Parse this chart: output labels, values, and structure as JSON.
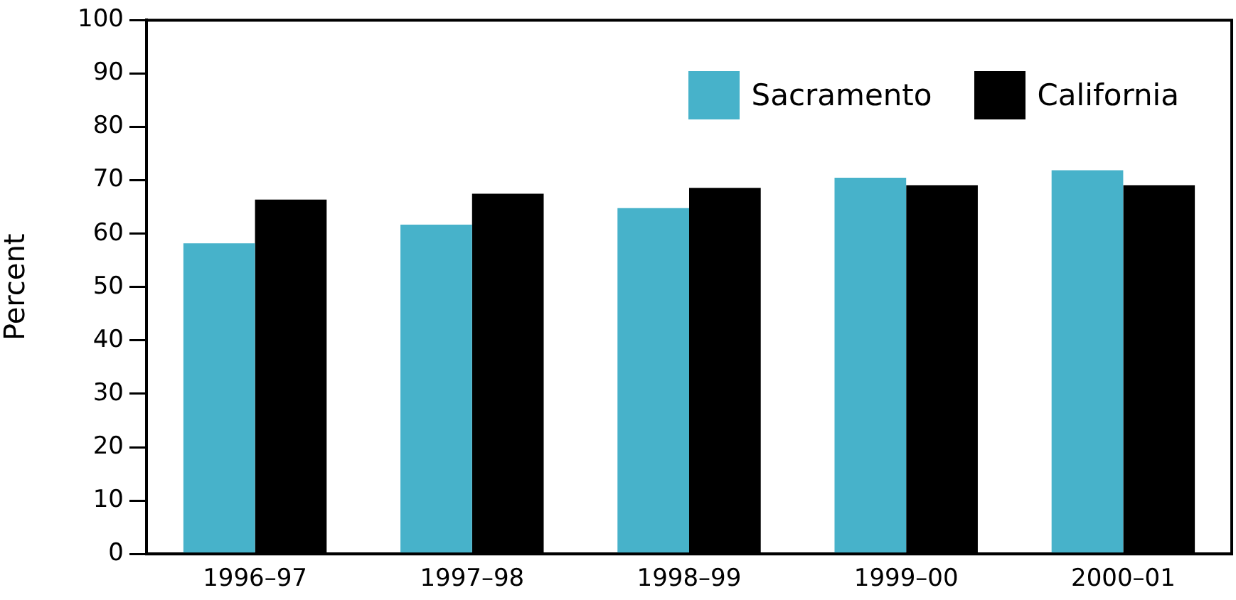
{
  "chart_data": {
    "type": "bar",
    "ylabel": "Percent",
    "categories": [
      "1996–97",
      "1997–98",
      "1998–99",
      "1999–00",
      "2000–01"
    ],
    "series": [
      {
        "name": "Sacramento",
        "color": "#47b2ca",
        "values": [
          58.2,
          61.7,
          64.8,
          70.5,
          71.9
        ]
      },
      {
        "name": "California",
        "color": "#000000",
        "values": [
          66.4,
          67.5,
          68.6,
          69.1,
          69.1
        ]
      }
    ],
    "ylim": [
      0,
      100
    ],
    "yticks": [
      0,
      10,
      20,
      30,
      40,
      50,
      60,
      70,
      80,
      90,
      100
    ],
    "grid": false,
    "legend": "top right"
  }
}
